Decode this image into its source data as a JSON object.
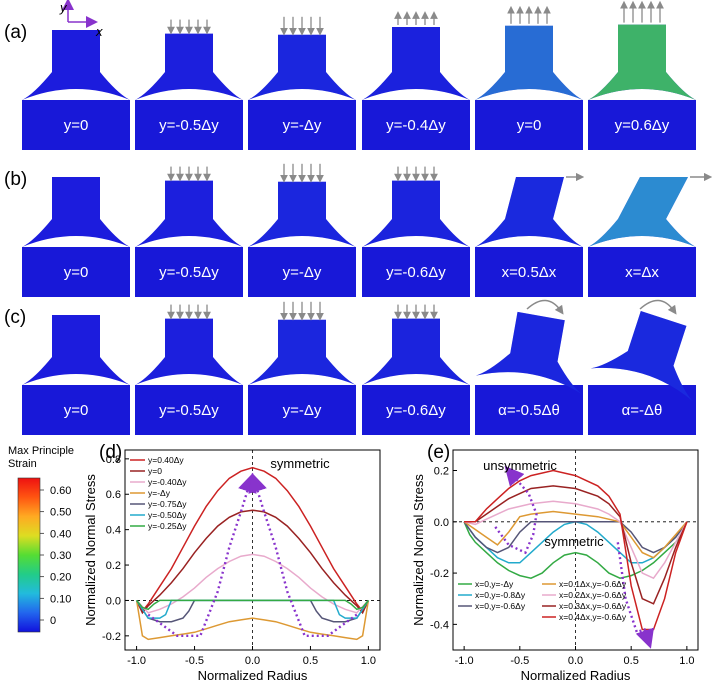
{
  "figure": {
    "rows": [
      {
        "label": "(a)",
        "cells": [
          "y=0",
          "y=-0.5Δy",
          "y=-Δy",
          "y=-0.4Δy",
          "y=0",
          "y=0.6Δy"
        ],
        "states": [
          {
            "fill": 0.0,
            "arrows": 0
          },
          {
            "fill": 0.05,
            "arrows": 5,
            "dir": "down",
            "len": 12
          },
          {
            "fill": 0.15,
            "arrows": 5,
            "dir": "down",
            "len": 16
          },
          {
            "fill": 0.08,
            "arrows": 5,
            "dir": "up",
            "len": 10
          },
          {
            "fill": 0.25,
            "arrows": 5,
            "dir": "up",
            "len": 14
          },
          {
            "fill": 0.45,
            "arrows": 5,
            "dir": "up",
            "len": 18
          }
        ]
      },
      {
        "label": "(b)",
        "cells": [
          "y=0",
          "y=-0.5Δy",
          "y=-Δy",
          "y=-0.6Δy",
          "x=0.5Δx",
          "x=Δx"
        ],
        "states": [
          {
            "fill": 0.0,
            "arrows": 0
          },
          {
            "fill": 0.05,
            "arrows": 5,
            "dir": "down",
            "len": 12
          },
          {
            "fill": 0.15,
            "arrows": 5,
            "dir": "down",
            "len": 16
          },
          {
            "fill": 0.1,
            "arrows": 5,
            "dir": "down",
            "len": 12
          },
          {
            "fill": 0.2,
            "arrows": 1,
            "dir": "right",
            "len": 14,
            "shear": 0.5
          },
          {
            "fill": 0.35,
            "arrows": 1,
            "dir": "right",
            "len": 18,
            "shear": 1
          }
        ]
      },
      {
        "label": "(c)",
        "cells": [
          "y=0",
          "y=-0.5Δy",
          "y=-Δy",
          "y=-0.6Δy",
          "α=-0.5Δθ",
          "α=-Δθ"
        ],
        "states": [
          {
            "fill": 0.0,
            "arrows": 0
          },
          {
            "fill": 0.05,
            "arrows": 5,
            "dir": "down",
            "len": 12
          },
          {
            "fill": 0.15,
            "arrows": 5,
            "dir": "down",
            "len": 16
          },
          {
            "fill": 0.1,
            "arrows": 5,
            "dir": "down",
            "len": 12
          },
          {
            "fill": 0.15,
            "arrows": 1,
            "dir": "rot",
            "rot": 10
          },
          {
            "fill": 0.2,
            "arrows": 1,
            "dir": "rot",
            "rot": 18
          }
        ]
      }
    ],
    "axes_label_x": "x",
    "axes_label_y": "y",
    "colorbar": {
      "title_line1": "Max Principle",
      "title_line2": "Strain",
      "ticks": [
        "0.60",
        "0.50",
        "0.40",
        "0.30",
        "0.20",
        "0.10",
        "0"
      ],
      "colors": [
        "#ee1111",
        "#ff5511",
        "#ffaa22",
        "#dddd22",
        "#55dd33",
        "#22cc88",
        "#22bbdd",
        "#2266ee",
        "#1111dd"
      ]
    }
  },
  "chart_data": [
    {
      "type": "line",
      "panel_label": "(d)",
      "xlabel": "Normalized Radius",
      "ylabel": "Normalized Normal Stress",
      "xlim": [
        -1.1,
        1.1
      ],
      "ylim": [
        -0.28,
        0.85
      ],
      "xticks": [
        -1.0,
        -0.5,
        0.0,
        0.5,
        1.0
      ],
      "xtick_labels": [
        "-1.0",
        "-0.5",
        "0.0",
        "0.5",
        "1.0"
      ],
      "yticks": [
        -0.2,
        0.0,
        0.2,
        0.4,
        0.6,
        0.8
      ],
      "ytick_labels": [
        "-0.2",
        "0.0",
        "0.2",
        "0.4",
        "0.6",
        "0.8"
      ],
      "annotation": "symmetric",
      "legend_position": "top-left",
      "series": [
        {
          "name": "y=0.40Δy",
          "color": "#cc2222",
          "x": [
            -1.0,
            -0.95,
            -0.9,
            -0.8,
            -0.7,
            -0.6,
            -0.5,
            -0.4,
            -0.3,
            -0.2,
            -0.1,
            0,
            0.1,
            0.2,
            0.3,
            0.4,
            0.5,
            0.6,
            0.7,
            0.8,
            0.9,
            0.95,
            1.0
          ],
          "y": [
            0,
            -0.06,
            -0.02,
            0.08,
            0.18,
            0.3,
            0.42,
            0.53,
            0.62,
            0.69,
            0.73,
            0.75,
            0.73,
            0.69,
            0.62,
            0.53,
            0.42,
            0.3,
            0.18,
            0.08,
            -0.02,
            -0.06,
            0
          ]
        },
        {
          "name": "y=0",
          "color": "#992222",
          "x": [
            -1.0,
            -0.95,
            -0.9,
            -0.8,
            -0.7,
            -0.6,
            -0.5,
            -0.4,
            -0.3,
            -0.2,
            -0.1,
            0,
            0.1,
            0.2,
            0.3,
            0.4,
            0.5,
            0.6,
            0.7,
            0.8,
            0.9,
            0.95,
            1.0
          ],
          "y": [
            0,
            -0.07,
            -0.03,
            0.03,
            0.1,
            0.18,
            0.27,
            0.35,
            0.42,
            0.47,
            0.5,
            0.51,
            0.5,
            0.47,
            0.42,
            0.35,
            0.27,
            0.18,
            0.1,
            0.03,
            -0.03,
            -0.07,
            0
          ]
        },
        {
          "name": "y=-0.40Δy",
          "color": "#e8aacc",
          "x": [
            -1.0,
            -0.9,
            -0.8,
            -0.7,
            -0.6,
            -0.5,
            -0.4,
            -0.3,
            -0.2,
            -0.1,
            0,
            0.1,
            0.2,
            0.3,
            0.4,
            0.5,
            0.6,
            0.7,
            0.8,
            0.9,
            1.0
          ],
          "y": [
            0,
            -0.07,
            -0.05,
            -0.02,
            0.02,
            0.07,
            0.13,
            0.18,
            0.22,
            0.25,
            0.26,
            0.25,
            0.22,
            0.18,
            0.13,
            0.07,
            0.02,
            -0.02,
            -0.05,
            -0.07,
            0
          ]
        },
        {
          "name": "y=-Δy",
          "color": "#dd9933",
          "x": [
            -1.0,
            -0.95,
            -0.9,
            -0.8,
            -0.7,
            -0.6,
            -0.5,
            -0.4,
            -0.3,
            -0.2,
            -0.1,
            0,
            0.1,
            0.2,
            0.3,
            0.4,
            0.5,
            0.6,
            0.7,
            0.8,
            0.9,
            0.95,
            1.0
          ],
          "y": [
            0,
            -0.2,
            -0.22,
            -0.21,
            -0.2,
            -0.19,
            -0.18,
            -0.16,
            -0.14,
            -0.12,
            -0.11,
            -0.1,
            -0.11,
            -0.12,
            -0.14,
            -0.16,
            -0.18,
            -0.19,
            -0.2,
            -0.21,
            -0.22,
            -0.2,
            0
          ]
        },
        {
          "name": "y=-0.75Δy",
          "color": "#555577",
          "x": [
            -1.0,
            -0.9,
            -0.8,
            -0.7,
            -0.6,
            -0.55,
            -0.5,
            -0.4,
            -0.2,
            0,
            0.2,
            0.4,
            0.5,
            0.55,
            0.6,
            0.7,
            0.8,
            0.9,
            1.0
          ],
          "y": [
            0,
            -0.1,
            -0.12,
            -0.12,
            -0.1,
            -0.06,
            0,
            0,
            0,
            0,
            0,
            0,
            0,
            -0.06,
            -0.1,
            -0.12,
            -0.12,
            -0.1,
            0
          ]
        },
        {
          "name": "y=-0.50Δy",
          "color": "#22aacc",
          "x": [
            -1.0,
            -0.9,
            -0.8,
            -0.75,
            -0.7,
            -0.6,
            -0.4,
            -0.2,
            0,
            0.2,
            0.4,
            0.6,
            0.7,
            0.75,
            0.8,
            0.9,
            1.0
          ],
          "y": [
            0,
            -0.1,
            -0.1,
            -0.08,
            0,
            0,
            0,
            0,
            0,
            0,
            0,
            0,
            0,
            -0.08,
            -0.1,
            -0.1,
            0
          ]
        },
        {
          "name": "y=-0.25Δy",
          "color": "#33aa44",
          "x": [
            -1.0,
            -0.95,
            -0.9,
            -0.85,
            -0.8,
            -0.6,
            -0.4,
            -0.2,
            0,
            0.2,
            0.4,
            0.6,
            0.8,
            0.85,
            0.9,
            0.95,
            1.0
          ],
          "y": [
            0,
            -0.04,
            -0.05,
            -0.02,
            0,
            0,
            0,
            0,
            0,
            0,
            0,
            0,
            0,
            -0.02,
            -0.05,
            -0.04,
            0
          ]
        }
      ],
      "guide_curves": [
        {
          "x": [
            -0.9,
            -0.65,
            -0.45,
            -0.3,
            -0.2,
            -0.1,
            -0.02
          ],
          "y": [
            -0.08,
            -0.2,
            -0.2,
            0.05,
            0.3,
            0.5,
            0.67
          ]
        },
        {
          "x": [
            0.9,
            0.65,
            0.45,
            0.3,
            0.2,
            0.1,
            0.02
          ],
          "y": [
            -0.08,
            -0.2,
            -0.2,
            0.05,
            0.3,
            0.5,
            0.67
          ]
        }
      ]
    },
    {
      "type": "line",
      "panel_label": "(e)",
      "xlabel": "Normalized Radius",
      "ylabel": "Normalized Normal Stress",
      "xlim": [
        -1.1,
        1.1
      ],
      "ylim": [
        -0.5,
        0.28
      ],
      "xticks": [
        -1.0,
        -0.5,
        0.0,
        0.5,
        1.0
      ],
      "xtick_labels": [
        "-1.0",
        "-0.5",
        "0.0",
        "0.5",
        "1.0"
      ],
      "yticks": [
        -0.4,
        -0.2,
        0.0,
        0.2
      ],
      "ytick_labels": [
        "-0.4",
        "-0.2",
        "0.0",
        "0.2"
      ],
      "annotation_top": "unsymmetric",
      "annotation_mid": "symmetric",
      "legend_position": "bottom",
      "series": [
        {
          "name": "x=0,y=-Δy",
          "color": "#33aa44",
          "x": [
            -1.0,
            -0.95,
            -0.9,
            -0.8,
            -0.7,
            -0.6,
            -0.5,
            -0.4,
            -0.3,
            -0.2,
            -0.1,
            0,
            0.1,
            0.2,
            0.3,
            0.4,
            0.5,
            0.6,
            0.7,
            0.8,
            0.9,
            0.95,
            1.0
          ],
          "y": [
            0,
            -0.05,
            -0.08,
            -0.12,
            -0.16,
            -0.19,
            -0.21,
            -0.22,
            -0.2,
            -0.16,
            -0.13,
            -0.12,
            -0.13,
            -0.16,
            -0.2,
            -0.22,
            -0.21,
            -0.19,
            -0.16,
            -0.12,
            -0.08,
            -0.05,
            0
          ]
        },
        {
          "name": "x=0,y=-0.8Δy",
          "color": "#22aacc",
          "x": [
            -1.0,
            -0.9,
            -0.8,
            -0.7,
            -0.6,
            -0.5,
            -0.4,
            -0.3,
            -0.2,
            -0.1,
            0,
            0.1,
            0.2,
            0.3,
            0.4,
            0.5,
            0.6,
            0.7,
            0.8,
            0.9,
            1.0
          ],
          "y": [
            0,
            -0.06,
            -0.1,
            -0.14,
            -0.16,
            -0.16,
            -0.12,
            -0.08,
            -0.04,
            -0.01,
            0,
            -0.01,
            -0.04,
            -0.08,
            -0.12,
            -0.16,
            -0.16,
            -0.14,
            -0.1,
            -0.06,
            0
          ]
        },
        {
          "name": "x=0,y=-0.6Δy",
          "color": "#555577",
          "x": [
            -1.0,
            -0.9,
            -0.8,
            -0.7,
            -0.6,
            -0.5,
            -0.4,
            -0.2,
            0,
            0.2,
            0.4,
            0.5,
            0.6,
            0.7,
            0.8,
            0.9,
            1.0
          ],
          "y": [
            0,
            -0.06,
            -0.1,
            -0.12,
            -0.1,
            -0.04,
            0,
            0,
            0,
            0,
            0,
            -0.04,
            -0.1,
            -0.12,
            -0.1,
            -0.06,
            0
          ]
        },
        {
          "name": "x=0.1Δx,y=-0.6Δy",
          "color": "#dd9933",
          "x": [
            -1.0,
            -0.9,
            -0.8,
            -0.7,
            -0.6,
            -0.5,
            -0.4,
            -0.2,
            0,
            0.2,
            0.4,
            0.5,
            0.6,
            0.7,
            0.8,
            0.9,
            1.0
          ],
          "y": [
            0,
            -0.03,
            -0.06,
            -0.09,
            -0.04,
            0.02,
            0.03,
            0.04,
            0.03,
            0.02,
            0,
            -0.06,
            -0.12,
            -0.14,
            -0.1,
            -0.05,
            0
          ]
        },
        {
          "name": "x=0.2Δx,y=-0.6Δy",
          "color": "#e8aacc",
          "x": [
            -1.0,
            -0.9,
            -0.8,
            -0.7,
            -0.6,
            -0.5,
            -0.4,
            -0.2,
            0,
            0.2,
            0.3,
            0.4,
            0.5,
            0.6,
            0.7,
            0.8,
            0.9,
            1.0
          ],
          "y": [
            0,
            -0.01,
            0.01,
            0.03,
            0.05,
            0.06,
            0.07,
            0.08,
            0.07,
            0.05,
            0.03,
            0,
            -0.1,
            -0.2,
            -0.22,
            -0.16,
            -0.08,
            0
          ]
        },
        {
          "name": "x=0.3Δx,y=-0.6Δy",
          "color": "#992222",
          "x": [
            -1.0,
            -0.9,
            -0.8,
            -0.7,
            -0.6,
            -0.5,
            -0.4,
            -0.2,
            0,
            0.2,
            0.3,
            0.4,
            0.5,
            0.6,
            0.7,
            0.8,
            0.9,
            1.0
          ],
          "y": [
            0,
            0,
            0.03,
            0.06,
            0.09,
            0.11,
            0.13,
            0.14,
            0.13,
            0.1,
            0.07,
            0.02,
            -0.16,
            -0.3,
            -0.32,
            -0.22,
            -0.1,
            0
          ]
        },
        {
          "name": "x=0.4Δx,y=-0.6Δy",
          "color": "#cc2222",
          "x": [
            -1.0,
            -0.9,
            -0.8,
            -0.7,
            -0.6,
            -0.5,
            -0.4,
            -0.2,
            0,
            0.2,
            0.3,
            0.4,
            0.5,
            0.6,
            0.7,
            0.8,
            0.9,
            1.0
          ],
          "y": [
            0,
            0,
            0.05,
            0.09,
            0.13,
            0.16,
            0.18,
            0.2,
            0.18,
            0.14,
            0.1,
            0.03,
            -0.25,
            -0.42,
            -0.42,
            -0.3,
            -0.12,
            0
          ]
        }
      ],
      "guide_curves": [
        {
          "x": [
            -0.72,
            -0.6,
            -0.45,
            -0.38,
            -0.35,
            -0.42,
            -0.58
          ],
          "y": [
            -0.02,
            -0.09,
            -0.12,
            -0.05,
            0.03,
            0.11,
            0.19
          ]
        },
        {
          "x": [
            0.38,
            0.45,
            0.55,
            0.62,
            0.65
          ],
          "y": [
            -0.08,
            -0.3,
            -0.43,
            -0.42,
            -0.46
          ]
        }
      ]
    }
  ]
}
